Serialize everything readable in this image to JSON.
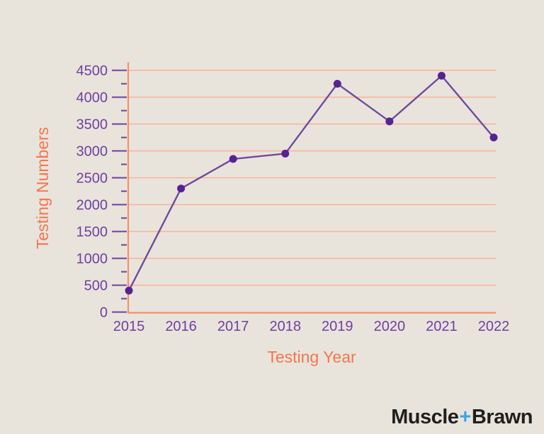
{
  "background": "#e9e4db",
  "colors": {
    "accent_orange": "#f4764e",
    "axis_orange": "#f5906b",
    "grid_peach": "#f7b295",
    "tick_purple": "#6e3fa3",
    "label_purple": "#6e3fa3",
    "line_purple": "#6f4a9e",
    "dot_purple": "#552393",
    "logo_black": "#1f1f1f",
    "logo_blue": "#3fa3e8"
  },
  "chart_data": {
    "type": "line",
    "title": "",
    "categories": [
      "2015",
      "2016",
      "2017",
      "2018",
      "2019",
      "2020",
      "2021",
      "2022"
    ],
    "series": [
      {
        "name": "Testing Numbers",
        "values": [
          400,
          2300,
          2850,
          2950,
          4250,
          3550,
          4400,
          3250
        ]
      }
    ],
    "xlabel": "Testing Year",
    "ylabel": "Testing Numbers",
    "ylim": [
      0,
      4500
    ],
    "ytick_step": 500,
    "ytick_labels": [
      "0",
      "500",
      "1000",
      "1500",
      "2000",
      "2500",
      "3000",
      "3500",
      "4000",
      "4500"
    ],
    "minor_tick_step": 250,
    "grid": "horizontal",
    "legend": "none",
    "markers": "filled-circle"
  },
  "logo": {
    "muscle": "Muscle",
    "plus": "+",
    "brawn": "Brawn"
  }
}
